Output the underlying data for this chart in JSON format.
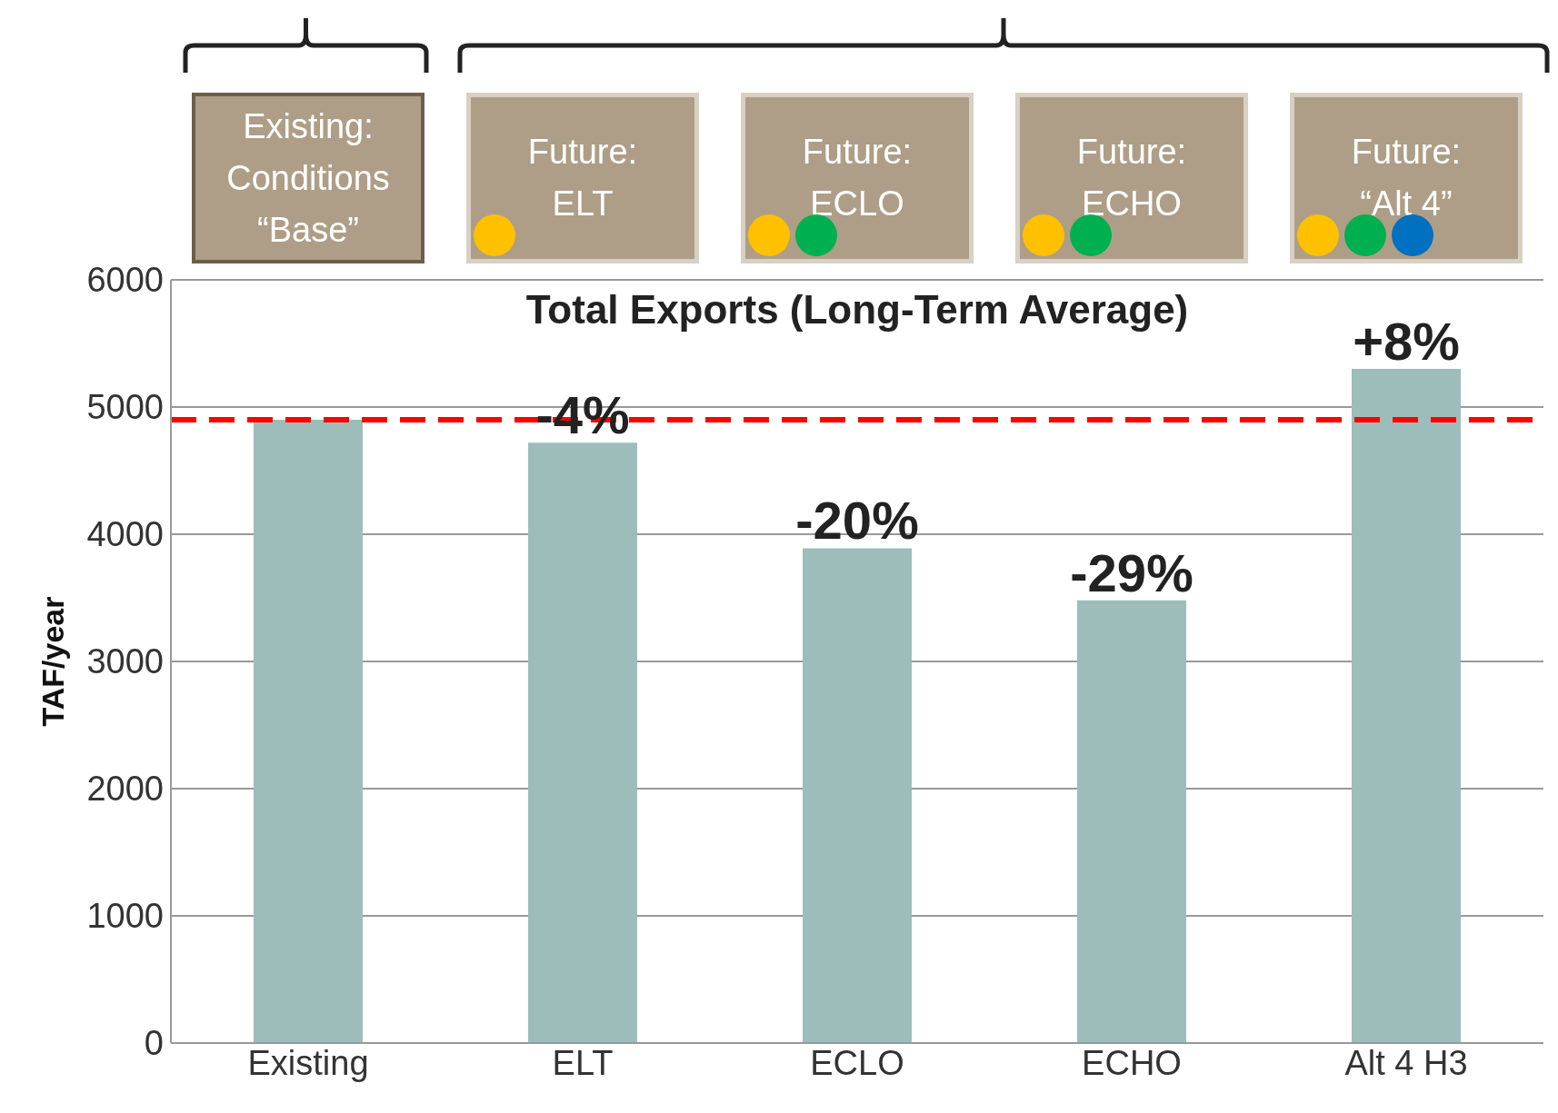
{
  "chart_data": {
    "type": "bar",
    "title": "Total Exports (Long-Term Average)",
    "ylabel": "TAF/year",
    "categories": [
      "Existing",
      "ELT",
      "ECLO",
      "ECHO",
      "Alt 4 H3"
    ],
    "values": [
      4900,
      4720,
      3890,
      3480,
      5300
    ],
    "color": "#9dbdbb",
    "ylim": [
      0,
      6000
    ],
    "yticks": [
      0,
      1000,
      2000,
      3000,
      4000,
      5000,
      6000
    ],
    "grid": "y",
    "ref_lines": [
      {
        "axis": "y",
        "value": 4900,
        "label": null,
        "color": "#ff0000",
        "line_style": "dashed"
      }
    ],
    "annotations": [
      "Existing:\nConditions\n“Base”",
      "Future:\nELT",
      "Future:\nECLO",
      "Future:\nECHO",
      "Future:\n“Alt 4”",
      {
        "text": "-4%",
        "x": "ELT",
        "y": 4720
      },
      {
        "text": "-20%",
        "x": "ECLO",
        "y": 3890
      },
      {
        "text": "-29%",
        "x": "ECHO",
        "y": 3480
      },
      {
        "text": "+8%",
        "x": "Alt 4 H3",
        "y": 5300
      }
    ]
  }
}
